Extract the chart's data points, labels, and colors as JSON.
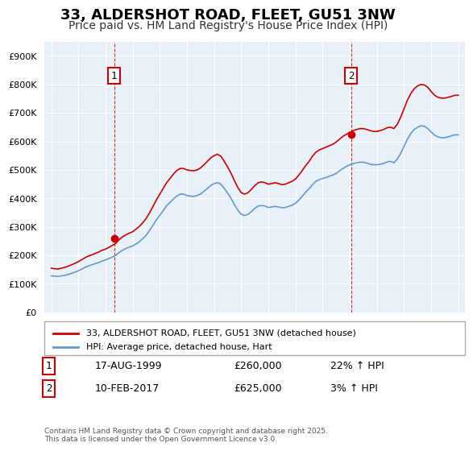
{
  "title": "33, ALDERSHOT ROAD, FLEET, GU51 3NW",
  "subtitle": "Price paid vs. HM Land Registry's House Price Index (HPI)",
  "legend_line1": "33, ALDERSHOT ROAD, FLEET, GU51 3NW (detached house)",
  "legend_line2": "HPI: Average price, detached house, Hart",
  "footer": "Contains HM Land Registry data © Crown copyright and database right 2025.\nThis data is licensed under the Open Government Licence v3.0.",
  "annotation1_label": "1",
  "annotation1_date": "17-AUG-1999",
  "annotation1_price": "£260,000",
  "annotation1_hpi": "22% ↑ HPI",
  "annotation2_label": "2",
  "annotation2_date": "10-FEB-2017",
  "annotation2_price": "£625,000",
  "annotation2_hpi": "3% ↑ HPI",
  "red_color": "#cc0000",
  "blue_color": "#6699cc",
  "bg_color": "#ddeeff",
  "plot_bg": "#e8f0f8",
  "ylim_min": 0,
  "ylim_max": 950000,
  "yticks": [
    0,
    100000,
    200000,
    300000,
    400000,
    500000,
    600000,
    700000,
    800000,
    900000
  ],
  "xlim_min": 1994.5,
  "xlim_max": 2025.5,
  "marker1_x": 1999.63,
  "marker1_y": 260000,
  "marker2_x": 2017.1,
  "marker2_y": 625000,
  "hpi_red": {
    "years": [
      1995.0,
      1995.25,
      1995.5,
      1995.75,
      1996.0,
      1996.25,
      1996.5,
      1996.75,
      1997.0,
      1997.25,
      1997.5,
      1997.75,
      1998.0,
      1998.25,
      1998.5,
      1998.75,
      1999.0,
      1999.25,
      1999.5,
      1999.75,
      2000.0,
      2000.25,
      2000.5,
      2000.75,
      2001.0,
      2001.25,
      2001.5,
      2001.75,
      2002.0,
      2002.25,
      2002.5,
      2002.75,
      2003.0,
      2003.25,
      2003.5,
      2003.75,
      2004.0,
      2004.25,
      2004.5,
      2004.75,
      2005.0,
      2005.25,
      2005.5,
      2005.75,
      2006.0,
      2006.25,
      2006.5,
      2006.75,
      2007.0,
      2007.25,
      2007.5,
      2007.75,
      2008.0,
      2008.25,
      2008.5,
      2008.75,
      2009.0,
      2009.25,
      2009.5,
      2009.75,
      2010.0,
      2010.25,
      2010.5,
      2010.75,
      2011.0,
      2011.25,
      2011.5,
      2011.75,
      2012.0,
      2012.25,
      2012.5,
      2012.75,
      2013.0,
      2013.25,
      2013.5,
      2013.75,
      2014.0,
      2014.25,
      2014.5,
      2014.75,
      2015.0,
      2015.25,
      2015.5,
      2015.75,
      2016.0,
      2016.25,
      2016.5,
      2016.75,
      2017.0,
      2017.25,
      2017.5,
      2017.75,
      2018.0,
      2018.25,
      2018.5,
      2018.75,
      2019.0,
      2019.25,
      2019.5,
      2019.75,
      2020.0,
      2020.25,
      2020.5,
      2020.75,
      2021.0,
      2021.25,
      2021.5,
      2021.75,
      2022.0,
      2022.25,
      2022.5,
      2022.75,
      2023.0,
      2023.25,
      2023.5,
      2023.75,
      2024.0,
      2024.25,
      2024.5,
      2024.75,
      2025.0
    ],
    "values": [
      155000,
      153000,
      152000,
      155000,
      158000,
      162000,
      167000,
      172000,
      178000,
      185000,
      192000,
      198000,
      202000,
      207000,
      212000,
      218000,
      222000,
      228000,
      235000,
      242000,
      255000,
      265000,
      272000,
      278000,
      283000,
      292000,
      302000,
      315000,
      330000,
      350000,
      372000,
      395000,
      415000,
      435000,
      455000,
      470000,
      485000,
      498000,
      505000,
      505000,
      500000,
      498000,
      497000,
      500000,
      507000,
      518000,
      530000,
      542000,
      550000,
      555000,
      548000,
      530000,
      510000,
      488000,
      462000,
      438000,
      420000,
      415000,
      420000,
      432000,
      445000,
      455000,
      458000,
      455000,
      450000,
      452000,
      455000,
      452000,
      448000,
      450000,
      455000,
      460000,
      468000,
      482000,
      498000,
      515000,
      530000,
      548000,
      562000,
      570000,
      575000,
      580000,
      585000,
      590000,
      598000,
      608000,
      618000,
      625000,
      632000,
      638000,
      642000,
      645000,
      645000,
      642000,
      638000,
      635000,
      635000,
      638000,
      642000,
      648000,
      650000,
      645000,
      660000,
      685000,
      715000,
      745000,
      768000,
      785000,
      795000,
      800000,
      798000,
      790000,
      775000,
      762000,
      755000,
      752000,
      752000,
      755000,
      758000,
      762000,
      762000
    ]
  },
  "hpi_blue": {
    "years": [
      1995.0,
      1995.25,
      1995.5,
      1995.75,
      1996.0,
      1996.25,
      1996.5,
      1996.75,
      1997.0,
      1997.25,
      1997.5,
      1997.75,
      1998.0,
      1998.25,
      1998.5,
      1998.75,
      1999.0,
      1999.25,
      1999.5,
      1999.75,
      2000.0,
      2000.25,
      2000.5,
      2000.75,
      2001.0,
      2001.25,
      2001.5,
      2001.75,
      2002.0,
      2002.25,
      2002.5,
      2002.75,
      2003.0,
      2003.25,
      2003.5,
      2003.75,
      2004.0,
      2004.25,
      2004.5,
      2004.75,
      2005.0,
      2005.25,
      2005.5,
      2005.75,
      2006.0,
      2006.25,
      2006.5,
      2006.75,
      2007.0,
      2007.25,
      2007.5,
      2007.75,
      2008.0,
      2008.25,
      2008.5,
      2008.75,
      2009.0,
      2009.25,
      2009.5,
      2009.75,
      2010.0,
      2010.25,
      2010.5,
      2010.75,
      2011.0,
      2011.25,
      2011.5,
      2011.75,
      2012.0,
      2012.25,
      2012.5,
      2012.75,
      2013.0,
      2013.25,
      2013.5,
      2013.75,
      2014.0,
      2014.25,
      2014.5,
      2014.75,
      2015.0,
      2015.25,
      2015.5,
      2015.75,
      2016.0,
      2016.25,
      2016.5,
      2016.75,
      2017.0,
      2017.25,
      2017.5,
      2017.75,
      2018.0,
      2018.25,
      2018.5,
      2018.75,
      2019.0,
      2019.25,
      2019.5,
      2019.75,
      2020.0,
      2020.25,
      2020.5,
      2020.75,
      2021.0,
      2021.25,
      2021.5,
      2021.75,
      2022.0,
      2022.25,
      2022.5,
      2022.75,
      2023.0,
      2023.25,
      2023.5,
      2023.75,
      2024.0,
      2024.25,
      2024.5,
      2024.75,
      2025.0
    ],
    "values": [
      128000,
      127000,
      126000,
      128000,
      130000,
      133000,
      137000,
      141000,
      146000,
      152000,
      158000,
      163000,
      167000,
      171000,
      175000,
      180000,
      184000,
      189000,
      194000,
      200000,
      210000,
      218000,
      224000,
      229000,
      233000,
      240000,
      248000,
      259000,
      271000,
      288000,
      306000,
      325000,
      341000,
      357000,
      374000,
      386000,
      398000,
      408000,
      415000,
      415000,
      410000,
      408000,
      407000,
      410000,
      415000,
      425000,
      435000,
      445000,
      452000,
      455000,
      450000,
      435000,
      418000,
      400000,
      378000,
      358000,
      344000,
      340000,
      344000,
      354000,
      365000,
      373000,
      375000,
      373000,
      368000,
      370000,
      372000,
      370000,
      367000,
      368000,
      372000,
      376000,
      383000,
      394000,
      408000,
      422000,
      434000,
      448000,
      460000,
      466000,
      470000,
      473000,
      478000,
      482000,
      488000,
      497000,
      505000,
      512000,
      518000,
      522000,
      525000,
      527000,
      527000,
      524000,
      520000,
      518000,
      518000,
      520000,
      523000,
      528000,
      530000,
      525000,
      538000,
      558000,
      583000,
      608000,
      628000,
      642000,
      650000,
      655000,
      653000,
      645000,
      633000,
      622000,
      616000,
      613000,
      613000,
      616000,
      620000,
      623000,
      623000
    ]
  }
}
